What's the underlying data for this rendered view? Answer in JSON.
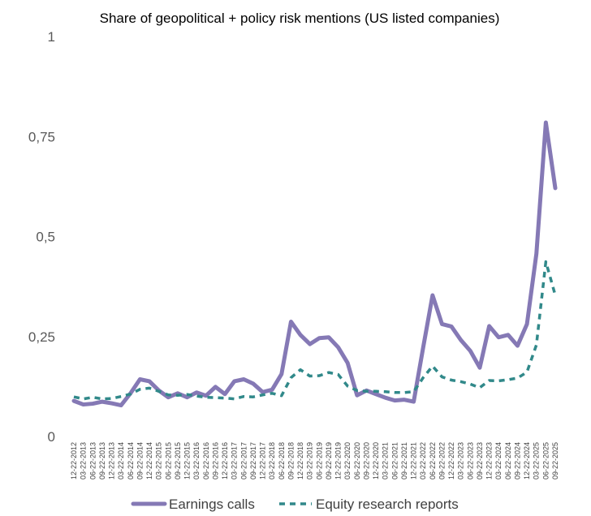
{
  "chart_data": {
    "type": "line",
    "title": "Share of geopolitical + policy risk mentions (US listed companies)",
    "xlabel": "",
    "ylabel": "",
    "ylim": [
      0,
      1
    ],
    "y_ticks": [
      {
        "value": 0,
        "label": "0"
      },
      {
        "value": 0.25,
        "label": "0,25"
      },
      {
        "value": 0.5,
        "label": "0,5"
      },
      {
        "value": 0.75,
        "label": "0,75"
      },
      {
        "value": 1,
        "label": "1"
      }
    ],
    "categories": [
      "12-22-2012",
      "03-22-2013",
      "06-22-2013",
      "09-22-2013",
      "12-22-2013",
      "03-22-2014",
      "06-22-2014",
      "09-22-2014",
      "12-22-2014",
      "03-22-2015",
      "06-22-2015",
      "09-22-2015",
      "12-22-2015",
      "03-22-2016",
      "06-22-2016",
      "09-22-2016",
      "12-22-2016",
      "03-22-2017",
      "06-22-2017",
      "09-22-2017",
      "12-22-2017",
      "03-22-2018",
      "06-22-2018",
      "09-22-2018",
      "12-22-2018",
      "03-22-2019",
      "06-22-2019",
      "09-22-2019",
      "12-22-2019",
      "03-22-2020",
      "06-22-2020",
      "09-22-2020",
      "12-22-2020",
      "03-22-2021",
      "06-22-2021",
      "09-22-2021",
      "12-22-2021",
      "03-22-2022",
      "06-22-2022",
      "09-22-2022",
      "12-22-2022",
      "03-22-2023",
      "06-22-2023",
      "09-22-2023",
      "12-22-2023",
      "03-22-2024",
      "06-22-2024",
      "09-22-2024",
      "12-22-2024",
      "03-22-2025",
      "06-22-2025",
      "09-22-2025"
    ],
    "series": [
      {
        "name": "Earnings calls",
        "color": "#8579b5",
        "style": "solid",
        "values": [
          0.089,
          0.08,
          0.082,
          0.087,
          0.083,
          0.078,
          0.108,
          0.143,
          0.138,
          0.115,
          0.098,
          0.108,
          0.098,
          0.11,
          0.102,
          0.124,
          0.106,
          0.138,
          0.143,
          0.132,
          0.111,
          0.117,
          0.156,
          0.287,
          0.254,
          0.231,
          0.246,
          0.248,
          0.223,
          0.184,
          0.103,
          0.115,
          0.106,
          0.097,
          0.09,
          0.092,
          0.087,
          0.222,
          0.353,
          0.281,
          0.275,
          0.241,
          0.214,
          0.172,
          0.276,
          0.248,
          0.254,
          0.227,
          0.281,
          0.457,
          0.785,
          0.621
        ]
      },
      {
        "name": "Equity research reports",
        "color": "#31898a",
        "style": "dashed",
        "values": [
          0.099,
          0.094,
          0.098,
          0.094,
          0.095,
          0.1,
          0.106,
          0.118,
          0.121,
          0.113,
          0.104,
          0.103,
          0.105,
          0.101,
          0.098,
          0.097,
          0.096,
          0.094,
          0.1,
          0.099,
          0.104,
          0.108,
          0.102,
          0.147,
          0.167,
          0.151,
          0.152,
          0.16,
          0.155,
          0.126,
          0.115,
          0.113,
          0.113,
          0.112,
          0.11,
          0.11,
          0.112,
          0.147,
          0.176,
          0.149,
          0.141,
          0.137,
          0.131,
          0.122,
          0.14,
          0.139,
          0.142,
          0.146,
          0.161,
          0.229,
          0.437,
          0.353
        ]
      }
    ],
    "legend_position": "bottom",
    "grid": false
  }
}
